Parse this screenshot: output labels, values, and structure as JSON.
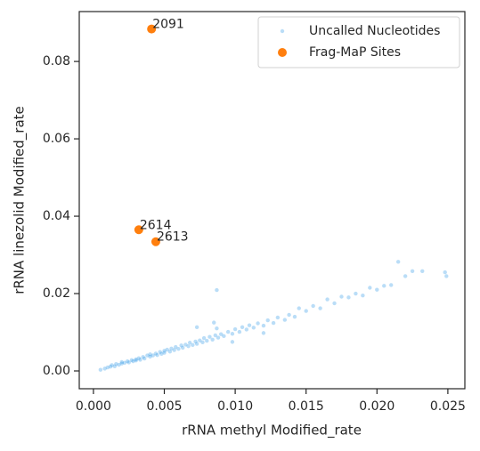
{
  "chart_data": {
    "type": "scatter",
    "x_label": "rRNA methyl Modified_rate",
    "y_label": "rRNA linezolid Modified_rate",
    "xlim": [
      -0.001,
      0.0262
    ],
    "ylim": [
      -0.0046,
      0.0929
    ],
    "xticks": [
      {
        "value": 0,
        "label": "0.000"
      },
      {
        "value": 0.005,
        "label": "0.005"
      },
      {
        "value": 0.01,
        "label": "0.010"
      },
      {
        "value": 0.015,
        "label": "0.015"
      },
      {
        "value": 0.02,
        "label": "0.020"
      },
      {
        "value": 0.025,
        "label": "0.025"
      }
    ],
    "yticks": [
      {
        "value": 0,
        "label": "0.00"
      },
      {
        "value": 0.02,
        "label": "0.02"
      },
      {
        "value": 0.04,
        "label": "0.04"
      },
      {
        "value": 0.06,
        "label": "0.06"
      },
      {
        "value": 0.08,
        "label": "0.08"
      }
    ],
    "legend": "upper right",
    "series": [
      {
        "name": "Uncalled Nucleotides",
        "color": "#1a8fe3",
        "opacity": 0.3,
        "size": 2.2,
        "x": [
          0.0005,
          0.0008,
          0.001,
          0.0012,
          0.0013,
          0.0015,
          0.0016,
          0.0018,
          0.002,
          0.002,
          0.0022,
          0.0024,
          0.0025,
          0.0027,
          0.0028,
          0.003,
          0.003,
          0.0032,
          0.0033,
          0.0035,
          0.0036,
          0.0038,
          0.004,
          0.004,
          0.0042,
          0.0044,
          0.0045,
          0.0047,
          0.0048,
          0.005,
          0.005,
          0.0052,
          0.0054,
          0.0055,
          0.0057,
          0.0058,
          0.006,
          0.0062,
          0.0063,
          0.0065,
          0.0067,
          0.0068,
          0.007,
          0.0072,
          0.0073,
          0.0075,
          0.0077,
          0.0078,
          0.008,
          0.0082,
          0.0084,
          0.0086,
          0.0088,
          0.009,
          0.0092,
          0.0095,
          0.0098,
          0.01,
          0.0103,
          0.0105,
          0.0108,
          0.011,
          0.0113,
          0.0116,
          0.012,
          0.0123,
          0.0127,
          0.013,
          0.0135,
          0.0138,
          0.0142,
          0.0145,
          0.015,
          0.0155,
          0.016,
          0.0165,
          0.017,
          0.0175,
          0.018,
          0.0185,
          0.019,
          0.0195,
          0.02,
          0.0205,
          0.021,
          0.0215,
          0.022,
          0.0225,
          0.0232,
          0.0248,
          0.0249,
          0.0085,
          0.0087,
          0.0073,
          0.0098,
          0.012,
          0.0087
        ],
        "values": [
          0.0003,
          0.0006,
          0.0009,
          0.0011,
          0.0015,
          0.0012,
          0.0018,
          0.0016,
          0.0019,
          0.0023,
          0.0021,
          0.0025,
          0.0022,
          0.0028,
          0.0025,
          0.003,
          0.0027,
          0.0033,
          0.0029,
          0.0036,
          0.0032,
          0.004,
          0.0037,
          0.0043,
          0.004,
          0.0045,
          0.0041,
          0.0049,
          0.0044,
          0.0052,
          0.0047,
          0.0055,
          0.005,
          0.0058,
          0.0054,
          0.0062,
          0.0057,
          0.0066,
          0.006,
          0.0068,
          0.0064,
          0.0073,
          0.0067,
          0.0076,
          0.007,
          0.0079,
          0.0074,
          0.0085,
          0.0078,
          0.0088,
          0.0081,
          0.0092,
          0.0086,
          0.0095,
          0.009,
          0.0101,
          0.0096,
          0.0108,
          0.0101,
          0.0113,
          0.0107,
          0.0118,
          0.0112,
          0.0123,
          0.0117,
          0.0131,
          0.0124,
          0.0138,
          0.0132,
          0.0145,
          0.014,
          0.0162,
          0.0155,
          0.0168,
          0.0162,
          0.0185,
          0.0175,
          0.0192,
          0.019,
          0.02,
          0.0195,
          0.0215,
          0.021,
          0.022,
          0.0222,
          0.0282,
          0.0245,
          0.0258,
          0.0258,
          0.0255,
          0.0245,
          0.0125,
          0.011,
          0.0113,
          0.0075,
          0.0098,
          0.0209
        ]
      },
      {
        "name": "Frag-MaP Sites",
        "color": "#ff7f0e",
        "opacity": 1,
        "size": 5,
        "x": [
          0.0041,
          0.0032,
          0.0044
        ],
        "values": [
          0.0884,
          0.0365,
          0.0334
        ],
        "point_labels": [
          "2091",
          "2614",
          "2613"
        ]
      }
    ]
  }
}
